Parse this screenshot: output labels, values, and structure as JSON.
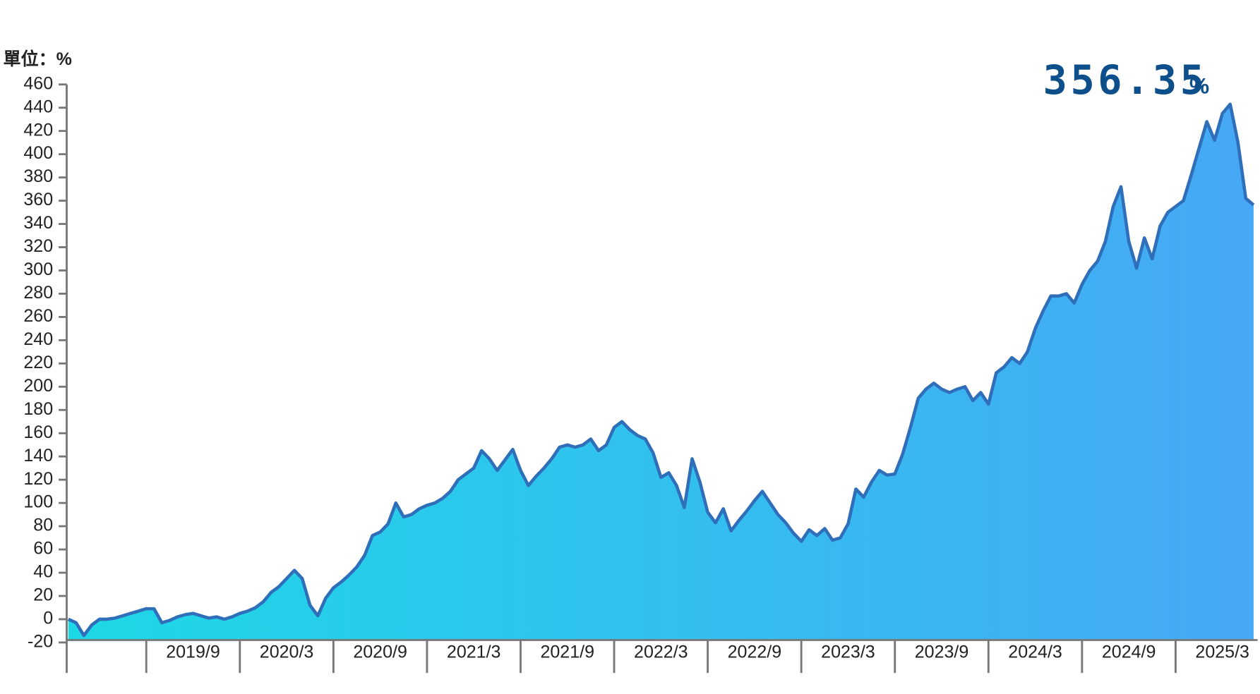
{
  "chart_data": {
    "type": "area",
    "y_label": "單位：%",
    "annotation": {
      "value": "356.35",
      "unit": "%"
    },
    "line_color": "#2f6fba",
    "fill_colors": [
      "#1dd8e6",
      "#46a8f6"
    ],
    "ylim": [
      -20,
      460
    ],
    "yticks": [
      -20,
      0,
      20,
      40,
      60,
      80,
      100,
      120,
      140,
      160,
      180,
      200,
      220,
      240,
      260,
      280,
      300,
      320,
      340,
      360,
      380,
      400,
      420,
      440,
      460
    ],
    "x": [
      null,
      null,
      null,
      null,
      null,
      null,
      null,
      null,
      null,
      null,
      null,
      null,
      null,
      null,
      null,
      null,
      "2019/9",
      null,
      null,
      null,
      null,
      null,
      null,
      null,
      null,
      null,
      null,
      null,
      "2020/3",
      null,
      null,
      null,
      null,
      null,
      null,
      null,
      null,
      null,
      null,
      null,
      "2020/9",
      null,
      null,
      null,
      null,
      null,
      null,
      null,
      null,
      null,
      null,
      null,
      "2021/3",
      null,
      null,
      null,
      null,
      null,
      null,
      null,
      null,
      null,
      null,
      null,
      "2021/9",
      null,
      null,
      null,
      null,
      null,
      null,
      null,
      null,
      null,
      null,
      null,
      "2022/3",
      null,
      null,
      null,
      null,
      null,
      null,
      null,
      null,
      null,
      null,
      null,
      "2022/9",
      null,
      null,
      null,
      null,
      null,
      null,
      null,
      null,
      null,
      null,
      null,
      "2023/3",
      null,
      null,
      null,
      null,
      null,
      null,
      null,
      null,
      null,
      null,
      null,
      "2023/9",
      null,
      null,
      null,
      null,
      null,
      null,
      null,
      null,
      null,
      null,
      null,
      "2024/3",
      null,
      null,
      null,
      null,
      null,
      null,
      null,
      null,
      null,
      null,
      null,
      "2024/9",
      null,
      null,
      null,
      null,
      null,
      null,
      null,
      null,
      null,
      null,
      null,
      "2025/3",
      null,
      null,
      null,
      null
    ],
    "values": [
      0,
      -3,
      -14,
      -5,
      0,
      0,
      1,
      3,
      5,
      7,
      9,
      9,
      -3,
      -1,
      2,
      4,
      5,
      3,
      1,
      2,
      0,
      2,
      5,
      7,
      10,
      15,
      23,
      28,
      35,
      42,
      35,
      12,
      3,
      18,
      27,
      32,
      38,
      45,
      55,
      72,
      75,
      82,
      100,
      88,
      90,
      95,
      98,
      100,
      104,
      110,
      120,
      125,
      130,
      145,
      138,
      128,
      137,
      146,
      128,
      115,
      123,
      130,
      138,
      148,
      150,
      148,
      150,
      155,
      145,
      150,
      165,
      170,
      163,
      158,
      155,
      143,
      122,
      126,
      115,
      96,
      138,
      118,
      92,
      83,
      95,
      76,
      85,
      93,
      102,
      110,
      100,
      90,
      83,
      74,
      67,
      77,
      72,
      78,
      68,
      70,
      82,
      112,
      105,
      118,
      128,
      124,
      125,
      142,
      165,
      190,
      198,
      203,
      198,
      195,
      198,
      200,
      188,
      195,
      185,
      212,
      217,
      225,
      220,
      230,
      250,
      265,
      278,
      278,
      280,
      272,
      288,
      300,
      308,
      325,
      355,
      372,
      325,
      302,
      328,
      310,
      338,
      350,
      355,
      360,
      382,
      405,
      428,
      412,
      435,
      443,
      410,
      362,
      356.35
    ]
  }
}
